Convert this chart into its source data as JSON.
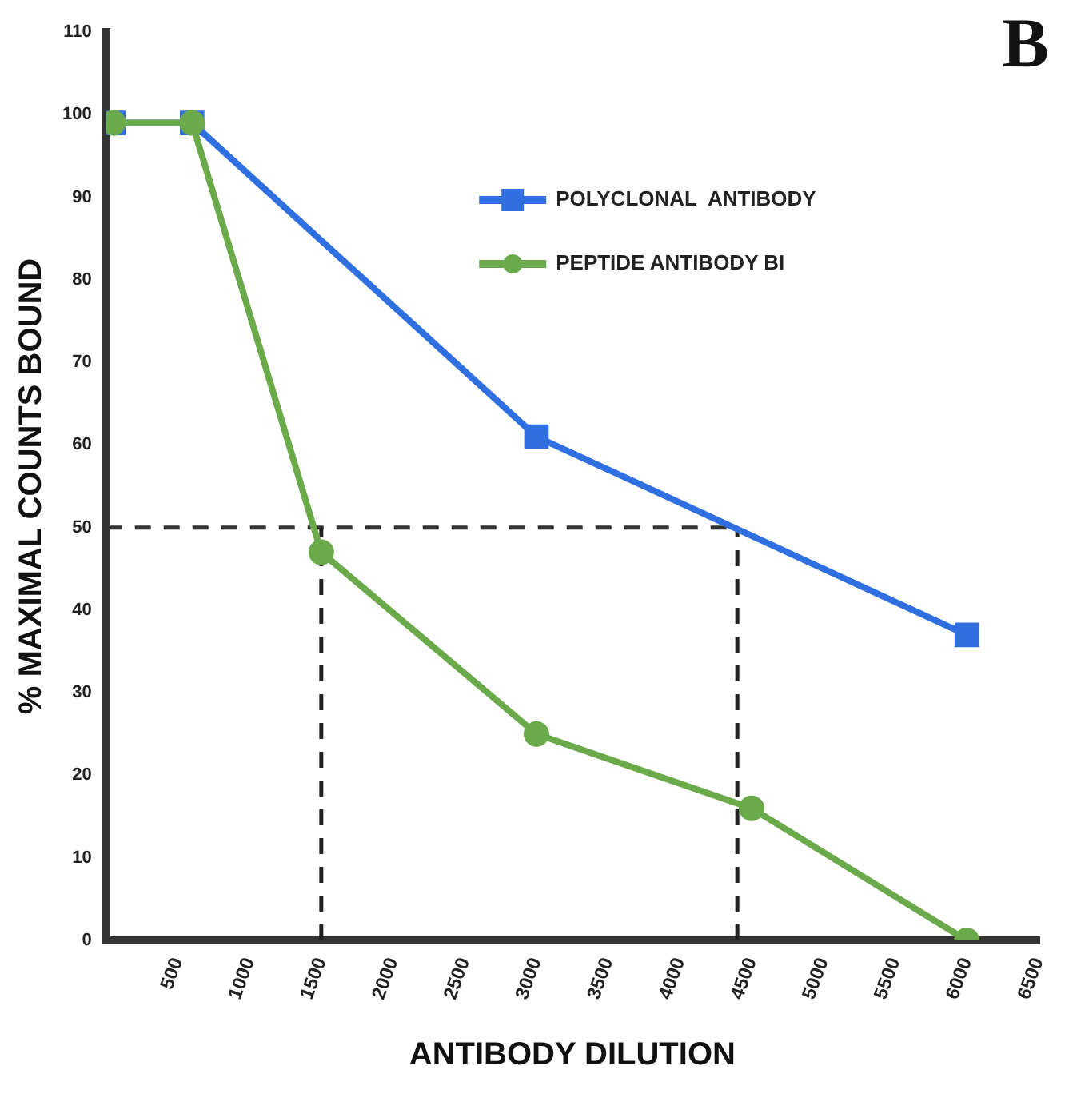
{
  "chart_data": {
    "type": "line",
    "xlabel": "ANTIBODY DILUTION",
    "ylabel": "% MAXIMAL COUNTS BOUND",
    "annotations": [
      "B"
    ],
    "series": [
      {
        "name": "POLYCLONAL  ANTIBODY",
        "color": "#2f6fe0",
        "marker": "square",
        "x": [
          50,
          600,
          3000,
          6000
        ],
        "values": [
          99,
          99,
          61,
          37
        ]
      },
      {
        "name": "PEPTIDE ANTIBODY BI",
        "color": "#6aaa4a",
        "marker": "circle",
        "x": [
          50,
          600,
          1500,
          3000,
          4500,
          6000
        ],
        "values": [
          99,
          99,
          47,
          25,
          16,
          0
        ]
      }
    ],
    "xlim": [
      0,
      6500
    ],
    "xticks": [
      500,
      1000,
      1500,
      2000,
      2500,
      3000,
      3500,
      4000,
      4500,
      5000,
      5500,
      6000,
      6500
    ],
    "ylim": [
      0,
      110
    ],
    "yticks": [
      0,
      10,
      20,
      30,
      40,
      50,
      60,
      70,
      80,
      90,
      100,
      110
    ],
    "ref_lines": [
      {
        "axis": "y",
        "value": 50,
        "color": "#333333",
        "line_style": "dashed"
      },
      {
        "axis": "x",
        "value": 1500,
        "color": "#222222",
        "line_style": "dashed"
      },
      {
        "axis": "x",
        "value": 4400,
        "color": "#222222",
        "line_style": "dashed"
      }
    ],
    "grid": false,
    "legend": "top right",
    "line_style": "solid"
  }
}
